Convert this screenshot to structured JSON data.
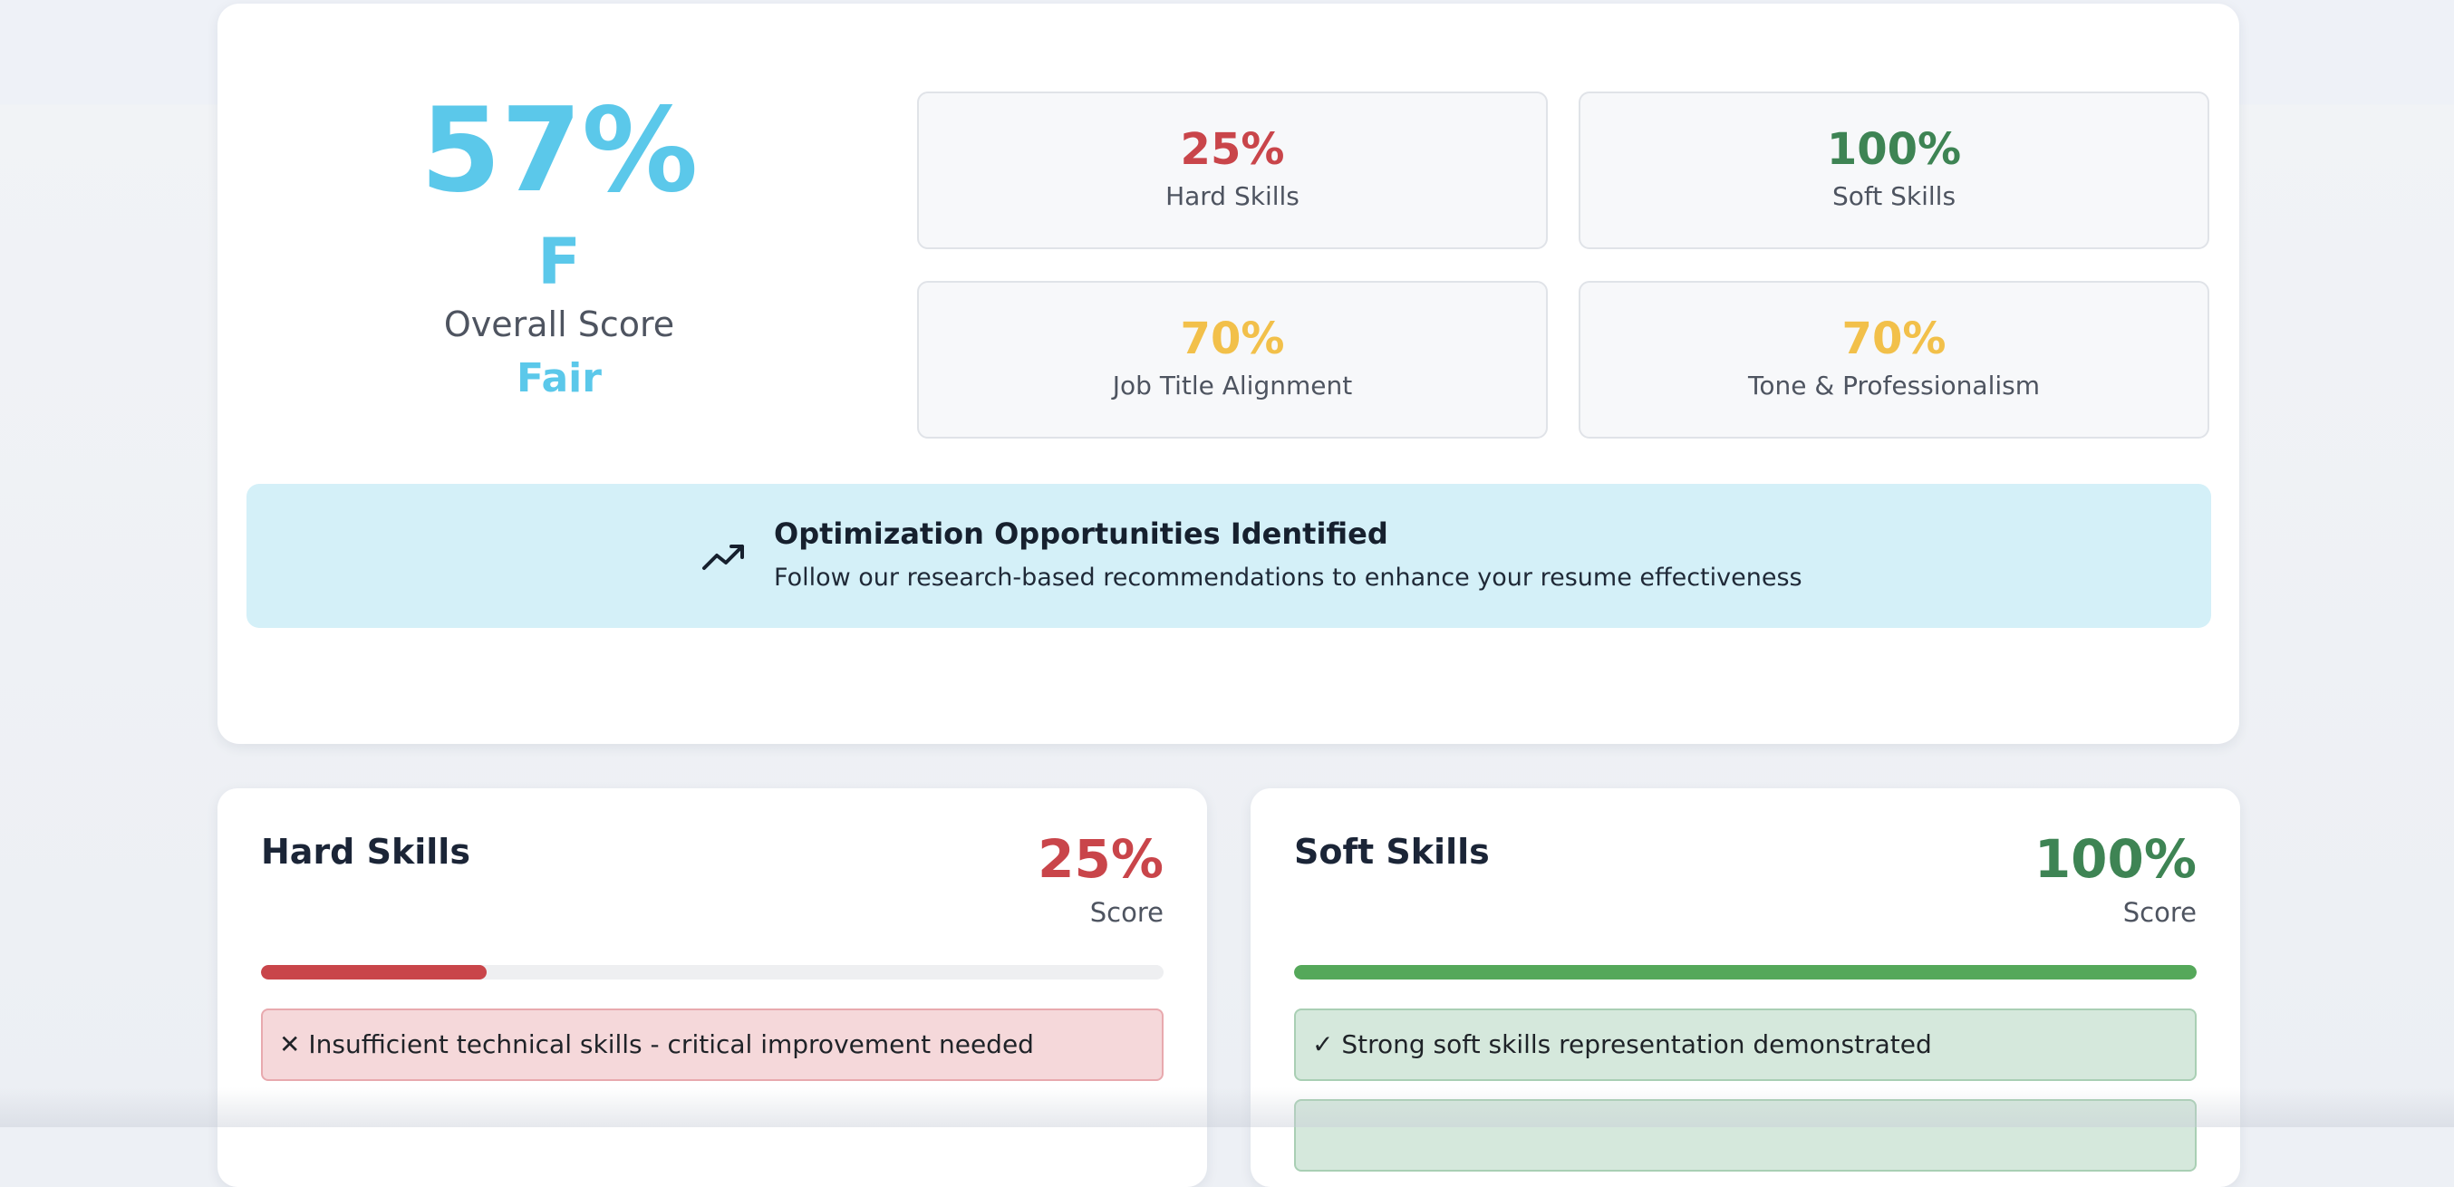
{
  "overall": {
    "percent": "57%",
    "grade": "F",
    "label": "Overall Score",
    "rating": "Fair",
    "color": "#5bc8ea"
  },
  "metrics": [
    {
      "value": "25%",
      "label": "Hard Skills",
      "color": "#c9454a"
    },
    {
      "value": "100%",
      "label": "Soft Skills",
      "color": "#3e8454"
    },
    {
      "value": "70%",
      "label": "Job Title Alignment",
      "color": "#f2c04a"
    },
    {
      "value": "70%",
      "label": "Tone & Professionalism",
      "color": "#f2c04a"
    }
  ],
  "banner": {
    "icon": "trending-up-icon",
    "title": "Optimization Opportunities Identified",
    "subtitle": "Follow our research-based recommendations to enhance your resume effectiveness"
  },
  "hard_skills": {
    "title": "Hard Skills",
    "score": "25%",
    "score_label": "Score",
    "progress": 0.25,
    "color": "#c9454a",
    "feedback": [
      "✕ Insufficient technical skills - critical improvement needed"
    ]
  },
  "soft_skills": {
    "title": "Soft Skills",
    "score": "100%",
    "score_label": "Score",
    "progress": 1.0,
    "color": "#3e8454",
    "feedback": [
      "✓ Strong soft skills representation demonstrated"
    ]
  }
}
